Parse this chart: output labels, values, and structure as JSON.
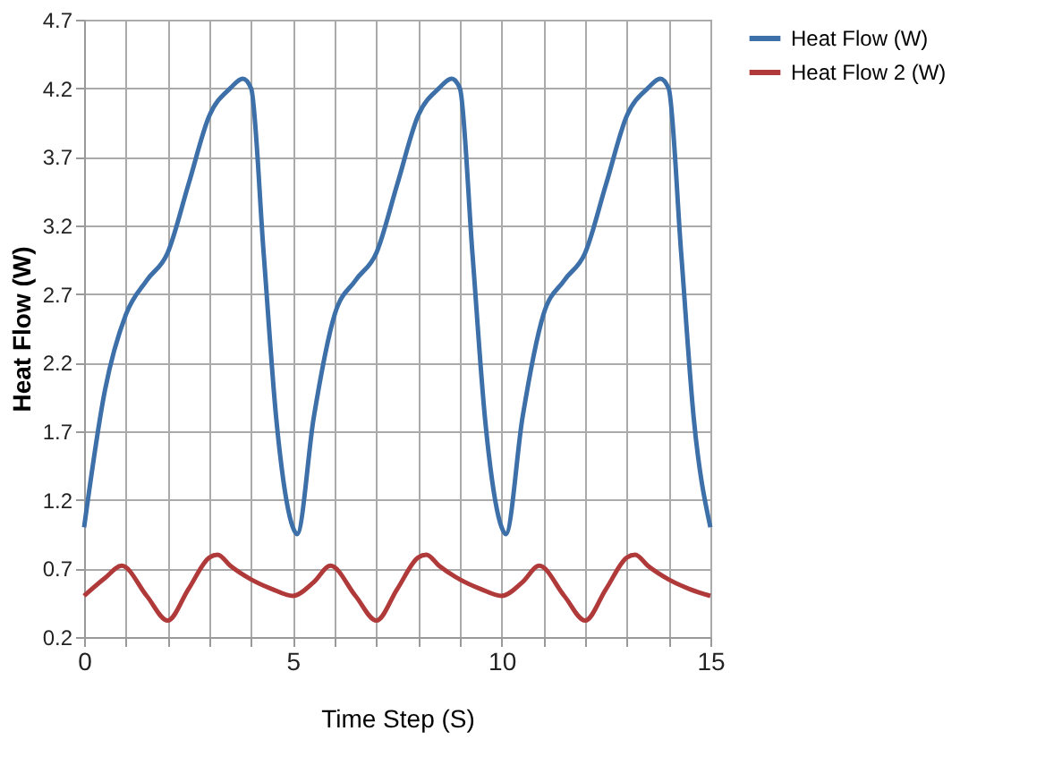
{
  "chart_data": {
    "type": "line",
    "xlabel": "Time Step (S)",
    "ylabel": "Heat Flow (W)",
    "xlim": [
      0,
      15
    ],
    "ylim": [
      0.2,
      4.7
    ],
    "xticks": [
      0,
      {
        "value": 1,
        "label": null
      },
      {
        "value": 2,
        "label": null
      },
      {
        "value": 3,
        "label": null
      },
      {
        "value": 4,
        "label": null
      },
      5,
      {
        "value": 6,
        "label": null
      },
      {
        "value": 7,
        "label": null
      },
      {
        "value": 8,
        "label": null
      },
      {
        "value": 9,
        "label": null
      },
      10,
      {
        "value": 11,
        "label": null
      },
      {
        "value": 12,
        "label": null
      },
      {
        "value": 13,
        "label": null
      },
      {
        "value": 14,
        "label": null
      },
      15
    ],
    "yticks": [
      0.2,
      0.7,
      1.2,
      1.7,
      2.2,
      2.7,
      3.2,
      3.7,
      4.2,
      4.7
    ],
    "grid": true,
    "legend": "right",
    "marker": "none",
    "line_style": "solid",
    "series": [
      {
        "name": "Heat Flow (W)",
        "color": "#3d6fa8",
        "x": [
          0,
          0.5,
          1,
          1.5,
          2,
          2.5,
          3,
          3.5,
          3.8,
          4,
          4.3,
          4.6,
          5,
          5.1,
          5.5,
          6,
          6.5,
          7,
          7.5,
          8,
          8.5,
          8.8,
          9,
          9.3,
          9.6,
          10,
          10.1,
          10.5,
          11,
          11.5,
          12,
          12.5,
          13,
          13.5,
          13.8,
          14,
          14.3,
          14.6,
          15
        ],
        "values": [
          1.0,
          2.0,
          2.55,
          2.8,
          3.0,
          3.5,
          4.0,
          4.2,
          4.27,
          4.2,
          3.0,
          1.8,
          1.0,
          0.95,
          1.8,
          2.55,
          2.8,
          3.0,
          3.5,
          4.0,
          4.2,
          4.27,
          4.2,
          3.0,
          1.8,
          1.0,
          0.95,
          1.8,
          2.55,
          2.8,
          3.0,
          3.5,
          4.0,
          4.2,
          4.27,
          4.2,
          3.0,
          1.8,
          1.0
        ]
      },
      {
        "name": "Heat Flow 2 (W)",
        "color": "#b03a3a",
        "x": [
          0,
          0.5,
          0.9,
          1.5,
          2,
          2.5,
          3,
          3.2,
          3.5,
          4,
          4.5,
          5,
          5.5,
          5.9,
          6.5,
          7,
          7.5,
          8,
          8.2,
          8.5,
          9,
          9.5,
          10,
          10.5,
          10.9,
          11.5,
          12,
          12.5,
          13,
          13.2,
          13.5,
          14,
          14.5,
          15
        ],
        "values": [
          0.5,
          0.63,
          0.72,
          0.5,
          0.32,
          0.55,
          0.78,
          0.8,
          0.72,
          0.62,
          0.55,
          0.5,
          0.6,
          0.72,
          0.5,
          0.32,
          0.55,
          0.78,
          0.8,
          0.72,
          0.62,
          0.55,
          0.5,
          0.6,
          0.72,
          0.5,
          0.32,
          0.55,
          0.78,
          0.8,
          0.72,
          0.62,
          0.55,
          0.5
        ]
      }
    ]
  }
}
